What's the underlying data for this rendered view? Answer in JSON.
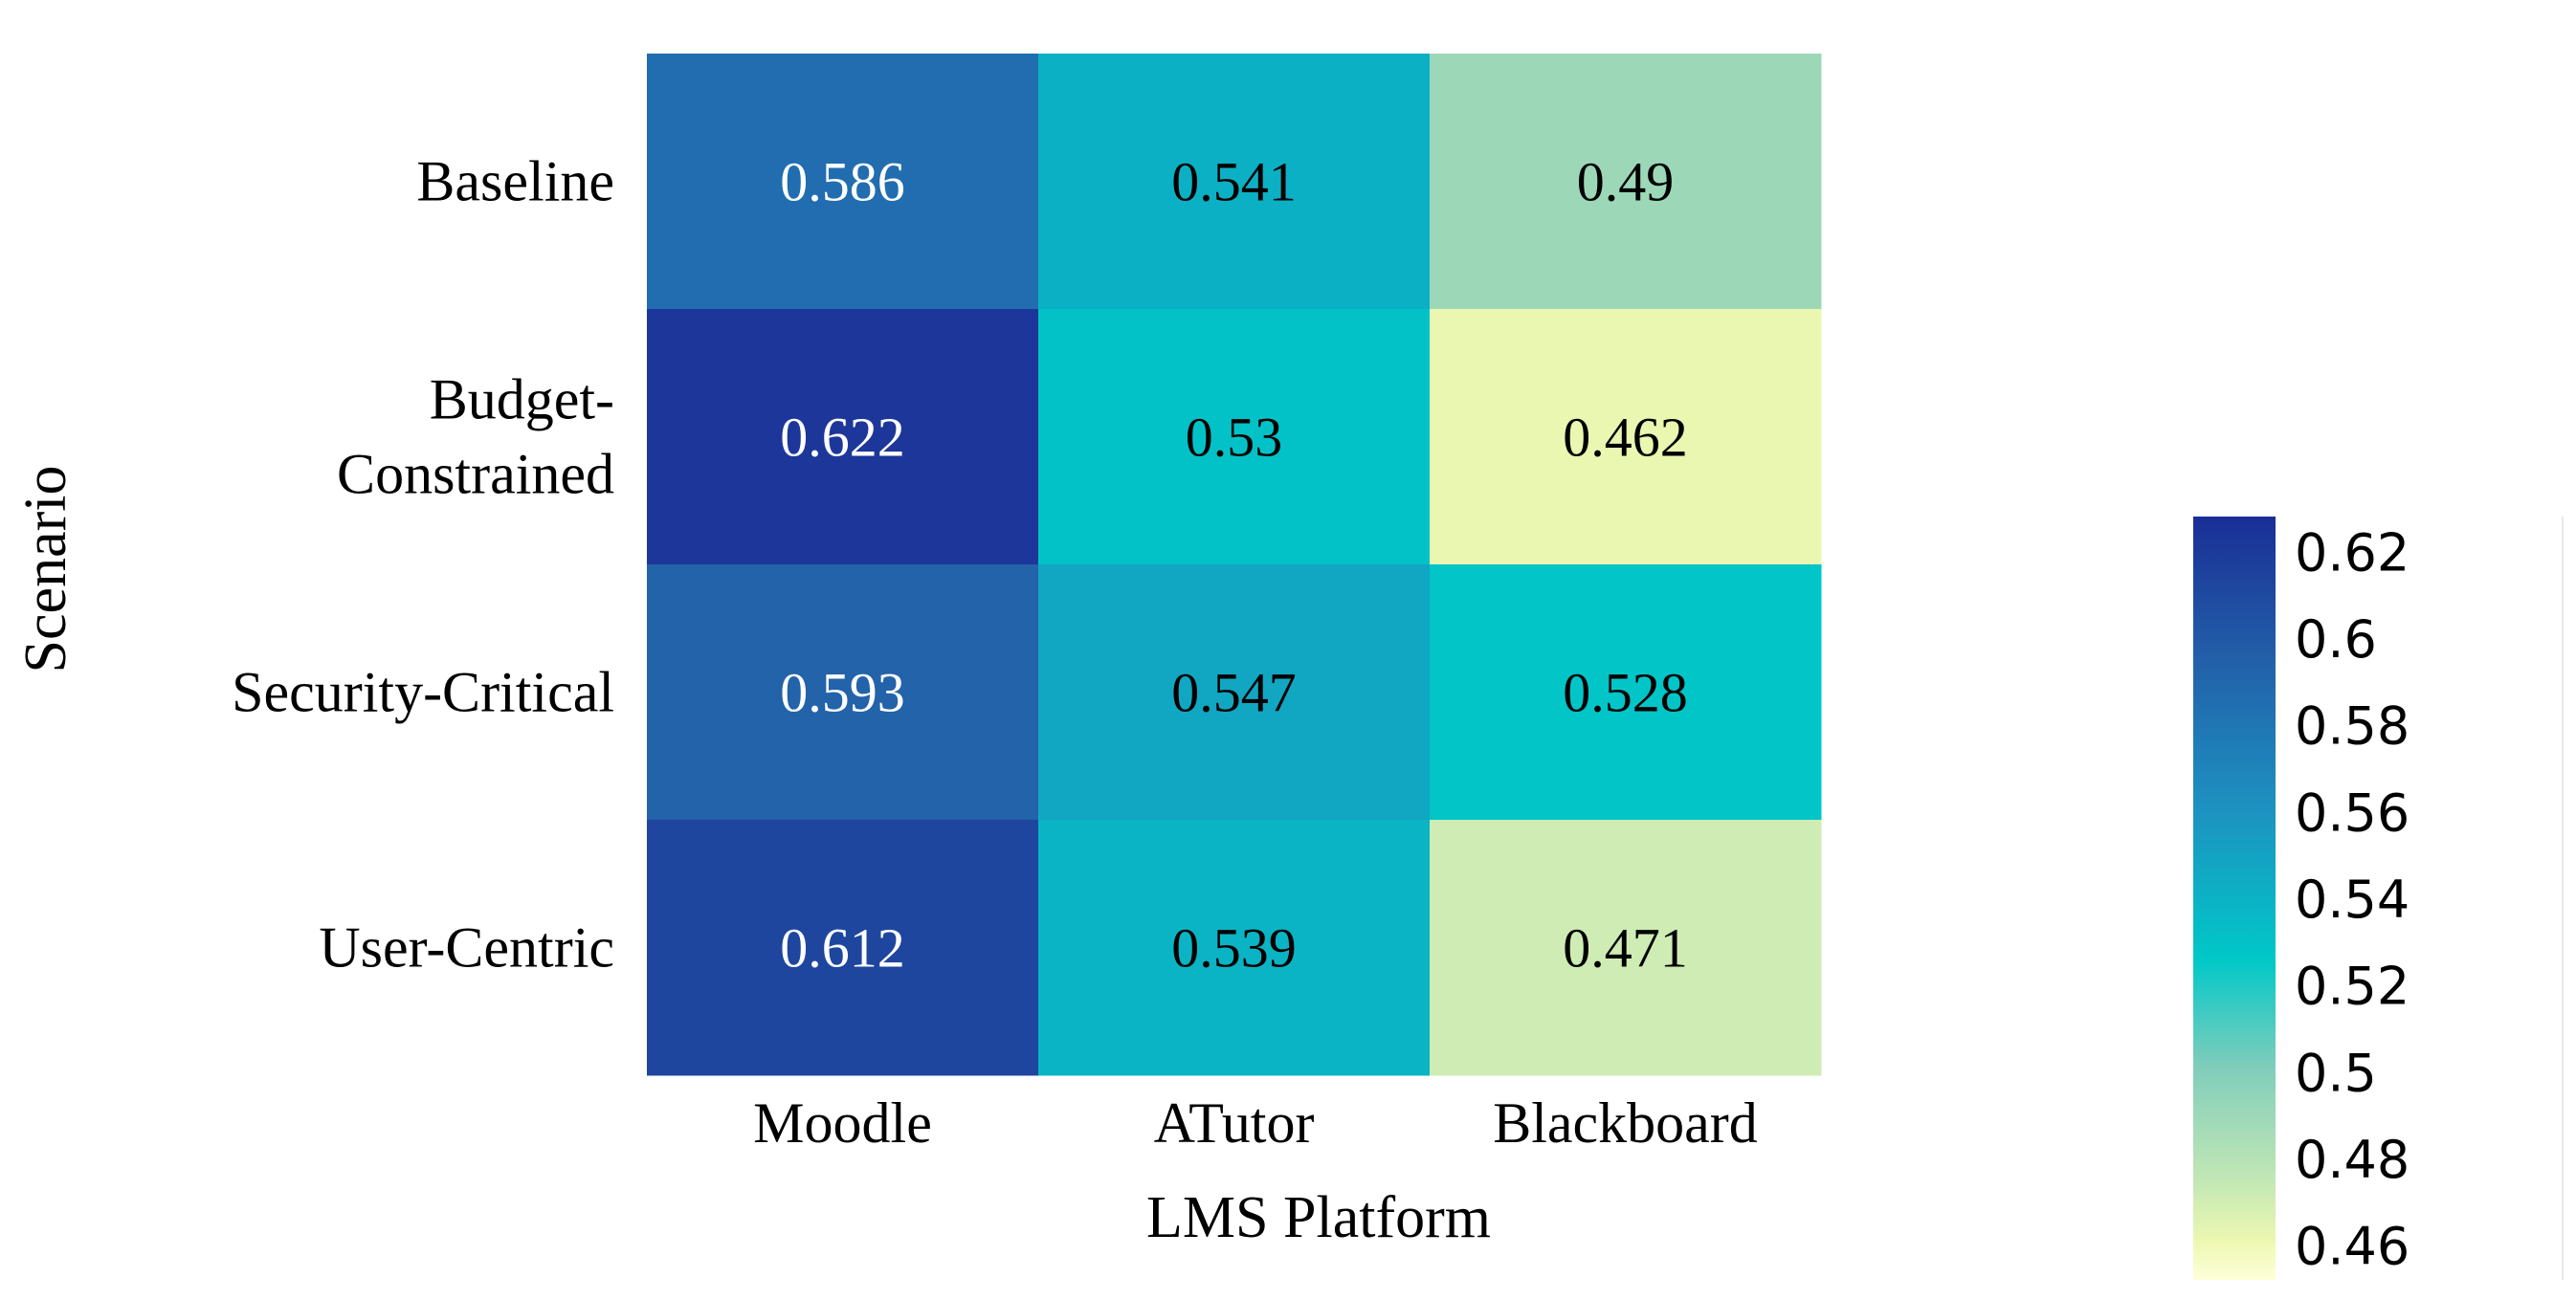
{
  "chart_data": {
    "type": "heatmap",
    "title": "",
    "xlabel": "LMS Platform",
    "ylabel": "Scenario",
    "x_categories": [
      "Moodle",
      "ATutor",
      "Blackboard"
    ],
    "y_categories": [
      [
        "Baseline"
      ],
      [
        "Budget-",
        "Constrained"
      ],
      [
        "Security-Critical"
      ],
      [
        "User-Centric"
      ]
    ],
    "values": [
      [
        0.586,
        0.541,
        0.49
      ],
      [
        0.622,
        0.53,
        0.462
      ],
      [
        0.593,
        0.547,
        0.528
      ],
      [
        0.612,
        0.539,
        0.471
      ]
    ],
    "value_labels": [
      [
        "0.586",
        "0.541",
        "0.49"
      ],
      [
        "0.622",
        "0.53",
        "0.462"
      ],
      [
        "0.593",
        "0.547",
        "0.528"
      ],
      [
        "0.612",
        "0.539",
        "0.471"
      ]
    ],
    "colorscale": "YlGnBu",
    "color_range": [
      0.452,
      0.628
    ],
    "colorbar_ticks": [
      "0.46",
      "0.48",
      "0.5",
      "0.52",
      "0.54",
      "0.56",
      "0.58",
      "0.6",
      "0.62"
    ],
    "colorbar_tick_values": [
      0.46,
      0.48,
      0.5,
      0.52,
      0.54,
      0.56,
      0.58,
      0.6,
      0.62
    ],
    "colors": {
      "stops": [
        "#ffffd9",
        "#edf8b1",
        "#c7e9b4",
        "#7fcdbb",
        "#00c8c8",
        "#1d91c0",
        "#225ea8",
        "#1a2e96"
      ],
      "stop_positions": [
        0.0,
        0.05,
        0.12,
        0.28,
        0.42,
        0.62,
        0.82,
        1.0
      ],
      "text_dark": "#000000",
      "text_light": "#ffffff",
      "light_text_threshold": 0.56
    }
  }
}
